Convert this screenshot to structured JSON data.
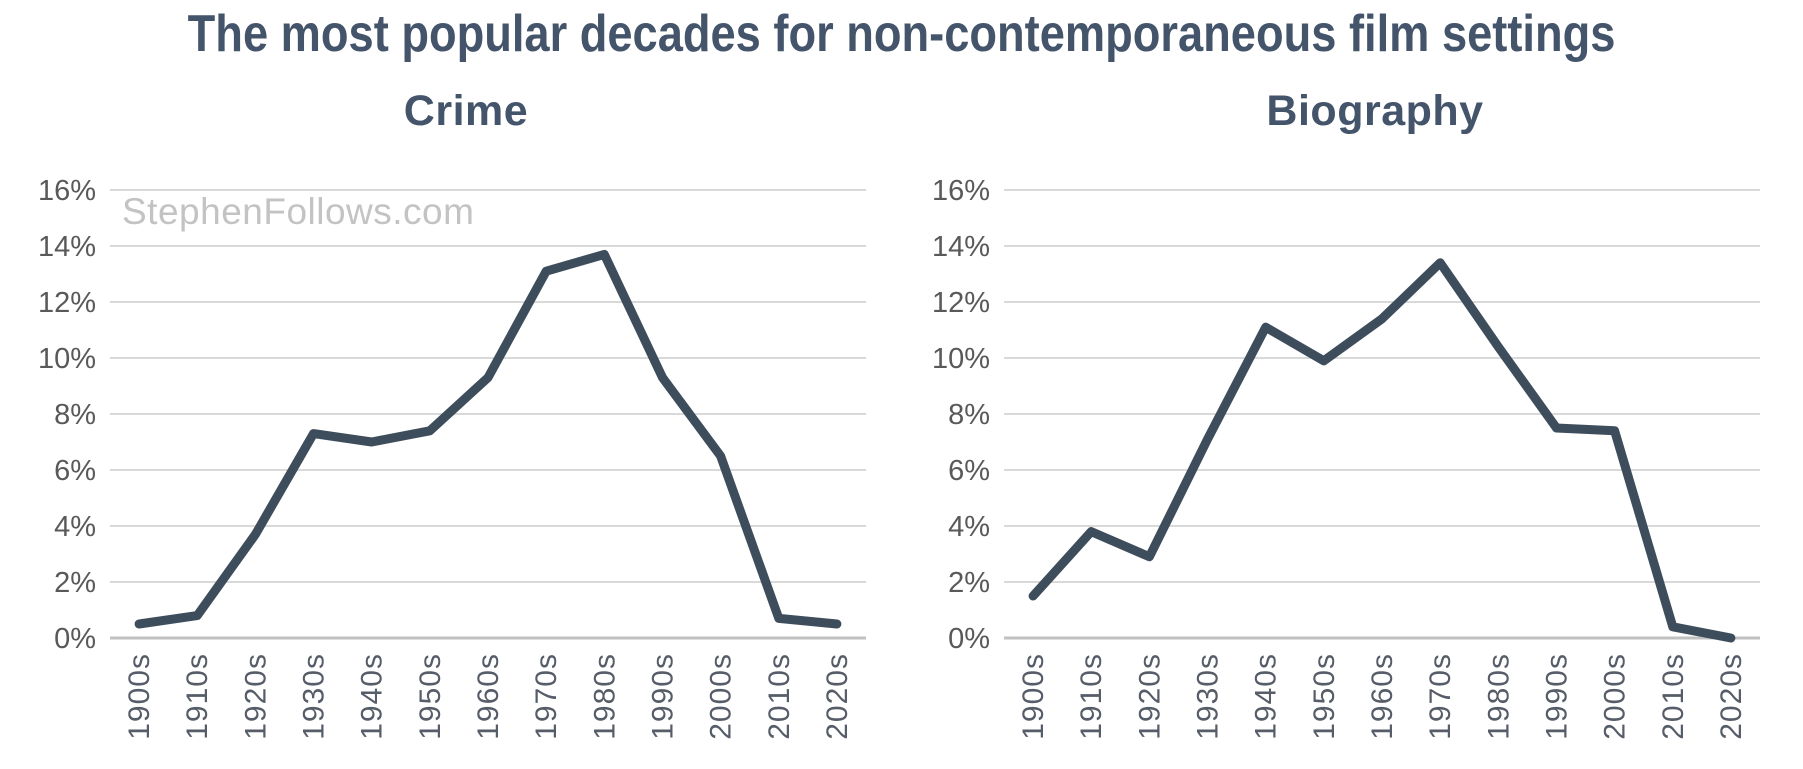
{
  "page": {
    "title": "The most popular decades for non-contemporaneous film settings",
    "watermark": "StephenFollows.com"
  },
  "colors": {
    "background": "#FFFFFF",
    "title": "#44546A",
    "chart_title": "#44546A",
    "line": "#3E4D5C",
    "grid": "#D9D9D9",
    "axis": "#C1C1C1",
    "tick_label": "#595959",
    "xtick_label": "#565D68",
    "watermark": "#C3C3C3"
  },
  "chart_data": [
    {
      "type": "line",
      "title": "Crime",
      "categories": [
        "1900s",
        "1910s",
        "1920s",
        "1930s",
        "1940s",
        "1950s",
        "1960s",
        "1970s",
        "1980s",
        "1990s",
        "2000s",
        "2010s",
        "2020s"
      ],
      "values": [
        0.5,
        0.8,
        3.7,
        7.3,
        7.0,
        7.4,
        9.3,
        13.1,
        13.7,
        9.3,
        6.5,
        0.7,
        0.5
      ],
      "ylim": [
        0,
        16
      ],
      "ytick_step": 2,
      "ytick_labels": [
        "0%",
        "2%",
        "4%",
        "6%",
        "8%",
        "10%",
        "12%",
        "14%",
        "16%"
      ],
      "grid": true,
      "legend": false,
      "watermark": "StephenFollows.com"
    },
    {
      "type": "line",
      "title": "Biography",
      "categories": [
        "1900s",
        "1910s",
        "1920s",
        "1930s",
        "1940s",
        "1950s",
        "1960s",
        "1970s",
        "1980s",
        "1990s",
        "2000s",
        "2010s",
        "2020s"
      ],
      "values": [
        1.5,
        3.8,
        2.9,
        7.1,
        11.1,
        9.9,
        11.4,
        13.4,
        10.4,
        7.5,
        7.4,
        0.4,
        0.0
      ],
      "ylim": [
        0,
        16
      ],
      "ytick_step": 2,
      "ytick_labels": [
        "0%",
        "2%",
        "4%",
        "6%",
        "8%",
        "10%",
        "12%",
        "14%",
        "16%"
      ],
      "grid": true,
      "legend": false
    }
  ]
}
